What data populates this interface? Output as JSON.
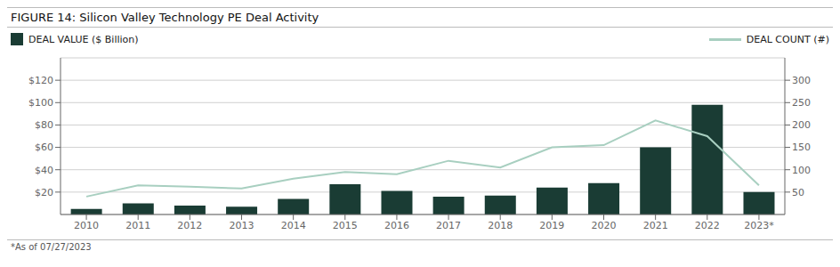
{
  "chart_data": {
    "type": "bar",
    "title": "FIGURE 14: Silicon Valley Technology PE Deal Activity",
    "annotations": [
      "*As of 07/27/2023"
    ],
    "categories": [
      "2010",
      "2011",
      "2012",
      "2013",
      "2014",
      "2015",
      "2016",
      "2017",
      "2018",
      "2019",
      "2020",
      "2021",
      "2022",
      "2023*"
    ],
    "series": [
      {
        "name": "DEAL VALUE ($ Billion)",
        "type": "bar",
        "color": "#1a3c34",
        "values": [
          5,
          10,
          8,
          7,
          14,
          27,
          21,
          16,
          17,
          24,
          28,
          60,
          98,
          20
        ]
      },
      {
        "name": "DEAL COUNT (#)",
        "type": "line",
        "axis": "y2",
        "color": "#a8cfc0",
        "values": [
          40,
          65,
          62,
          58,
          80,
          95,
          90,
          120,
          105,
          150,
          155,
          210,
          175,
          65
        ]
      }
    ],
    "ylim": [
      0,
      140
    ],
    "yticks": [
      {
        "value": 20,
        "label": "$20"
      },
      {
        "value": 40,
        "label": "$40"
      },
      {
        "value": 60,
        "label": "$60"
      },
      {
        "value": 80,
        "label": "$80"
      },
      {
        "value": 100,
        "label": "$100"
      },
      {
        "value": 120,
        "label": "$120"
      }
    ],
    "y2lim": [
      0,
      350
    ],
    "y2ticks": [
      50,
      100,
      150,
      200,
      250,
      300
    ],
    "grid": true
  }
}
